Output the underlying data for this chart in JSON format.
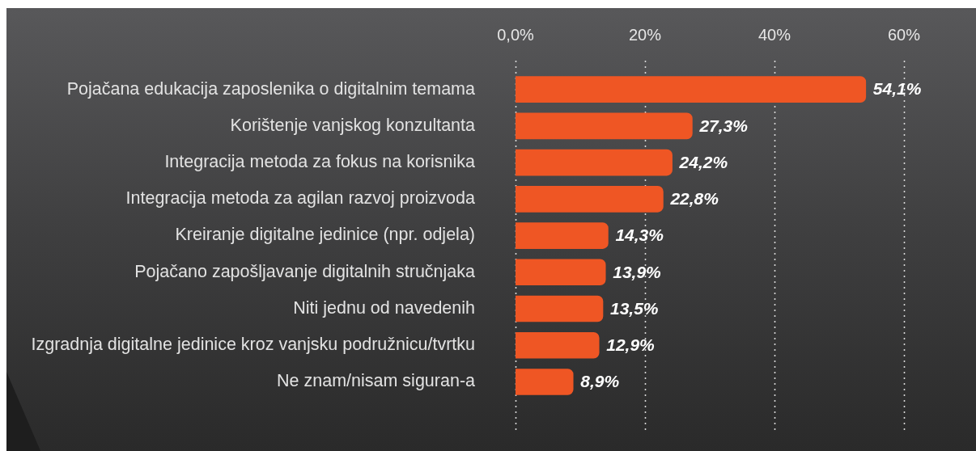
{
  "chart_data": {
    "type": "bar",
    "orientation": "horizontal",
    "categories": [
      "Pojačana edukacija zaposlenika o digitalnim temama",
      "Korištenje vanjskog konzultanta",
      "Integracija metoda za fokus na korisnika",
      "Integracija metoda za agilan razvoj proizvoda",
      "Kreiranje digitalne jedinice (npr. odjela)",
      "Pojačano zapošljavanje digitalnih stručnjaka",
      "Niti jednu od navedenih",
      "Izgradnja digitalne jedinice kroz vanjsku podružnicu/tvrtku",
      "Ne znam/nisam siguran-a"
    ],
    "values": [
      54.1,
      27.3,
      24.2,
      22.8,
      14.3,
      13.9,
      13.5,
      12.9,
      8.9
    ],
    "value_labels": [
      "54,1%",
      "27,3%",
      "24,2%",
      "22,8%",
      "14,3%",
      "13,9%",
      "13,5%",
      "12,9%",
      "8,9%"
    ],
    "color": "#ef5624",
    "xlim": [
      0,
      60
    ],
    "xticks": [
      {
        "value": 0,
        "label": "0,0%"
      },
      {
        "value": 20,
        "label": "20%"
      },
      {
        "value": 40,
        "label": "40%"
      },
      {
        "value": 60,
        "label": "60%"
      }
    ],
    "grid": "x",
    "legend": false
  }
}
